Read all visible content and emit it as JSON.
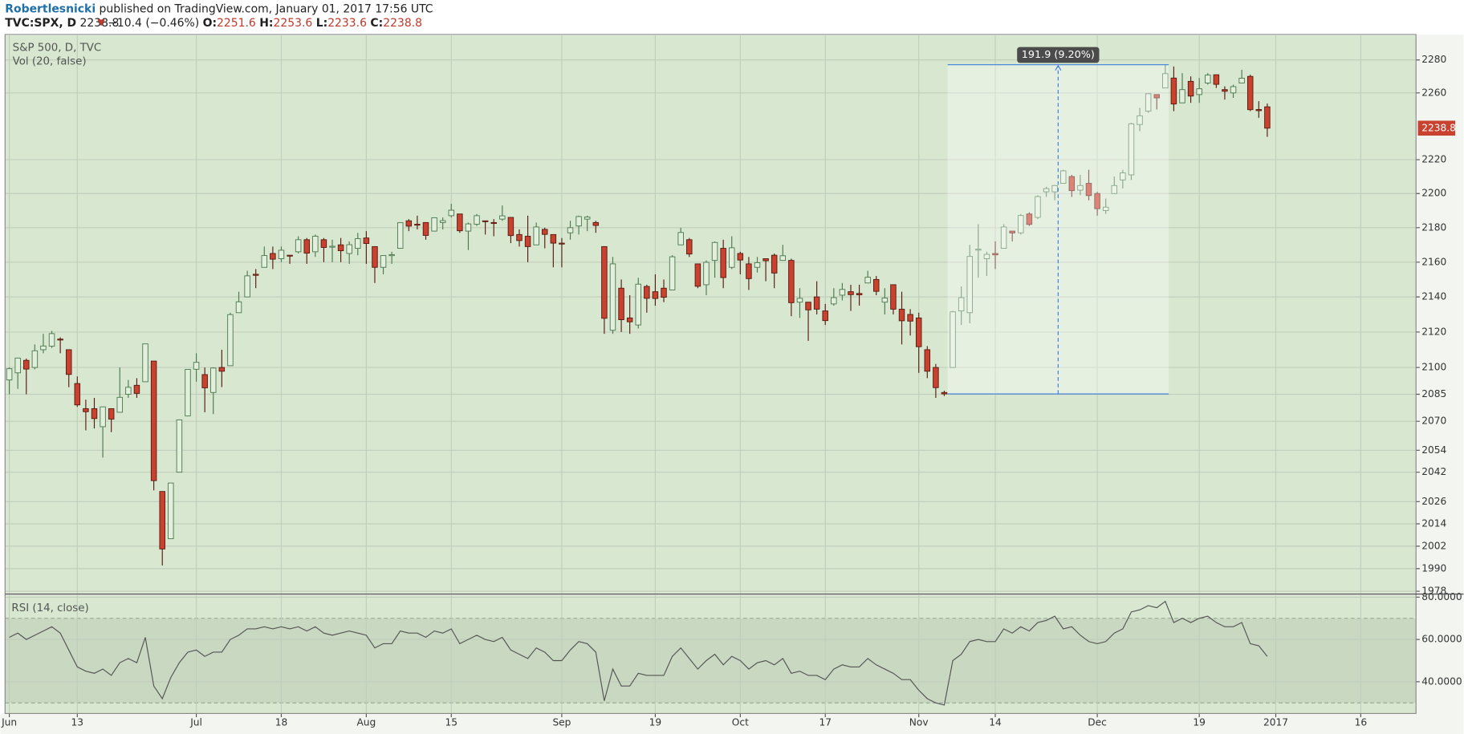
{
  "header": {
    "author": "Robertlesnicki",
    "published": "published on TradingView.com, January 01, 2017 17:56 UTC",
    "symbol": "TVC:SPX, D",
    "last": "2238.8",
    "change": "−10.4 (−0.46%)",
    "open_label": "O:",
    "open": "2251.6",
    "high_label": "H:",
    "high": "2253.6",
    "low_label": "L:",
    "low": "2233.6",
    "close_label": "C:",
    "close": "2238.8"
  },
  "chart_data": [
    {
      "type": "candlestick",
      "title": "S&P 500, D, TVC",
      "subtitle": "Vol (20, false)",
      "log_scale": true,
      "grid": true,
      "up_color": "#e2efdc",
      "up_edge": "#4f7a50",
      "down_color": "#c9412f",
      "down_edge": "#5a1c12",
      "ylim": [
        1977,
        2295
      ],
      "yticks": [
        2280,
        2260,
        2220,
        2200,
        2180,
        2160,
        2140,
        2120,
        2100,
        2085,
        2070,
        2054,
        2042,
        2026,
        2014,
        2002,
        1990,
        1978
      ],
      "categories": [
        "Jun",
        null,
        null,
        null,
        null,
        null,
        null,
        null,
        "13",
        null,
        null,
        null,
        null,
        null,
        null,
        null,
        null,
        null,
        null,
        null,
        null,
        null,
        "Jul",
        null,
        null,
        null,
        null,
        null,
        null,
        null,
        null,
        null,
        "18",
        null,
        null,
        null,
        null,
        null,
        null,
        null,
        null,
        null,
        "Aug",
        null,
        null,
        null,
        null,
        null,
        null,
        null,
        null,
        null,
        "15",
        null,
        null,
        null,
        null,
        null,
        null,
        null,
        null,
        null,
        null,
        null,
        null,
        "Sep",
        null,
        null,
        null,
        null,
        null,
        null,
        null,
        null,
        null,
        null,
        "19",
        null,
        null,
        null,
        null,
        null,
        null,
        null,
        null,
        null,
        "Oct",
        null,
        null,
        null,
        null,
        null,
        null,
        null,
        null,
        null,
        "17",
        null,
        null,
        null,
        null,
        null,
        null,
        null,
        null,
        null,
        null,
        "Nov",
        null,
        null,
        null,
        null,
        null,
        null,
        null,
        null,
        "14",
        null,
        null,
        null,
        null,
        null,
        null,
        null,
        null,
        null,
        null,
        null,
        "Dec",
        null,
        null,
        null,
        null,
        null,
        null,
        null,
        null,
        null,
        null,
        null,
        "19",
        null,
        null,
        null,
        null,
        null,
        null,
        null,
        null,
        "2017",
        null,
        null,
        null,
        null,
        null,
        null,
        null,
        null,
        null,
        "16",
        null,
        null,
        null,
        null,
        null,
        null
      ],
      "open": [
        2093,
        2097,
        2104,
        2100,
        2110,
        2112,
        2116,
        2110,
        2091,
        2077,
        2077,
        2067,
        2077,
        2075,
        2085,
        2090,
        2092,
        2103.6,
        2031.5,
        2006,
        2042,
        2073,
        2099,
        2096,
        2086,
        2100,
        2101,
        2131,
        2140,
        2153,
        2157,
        2165,
        2162,
        2164,
        2166,
        2173,
        2166,
        2173,
        2169,
        2170,
        2165,
        2168,
        2174,
        2169,
        2157,
        2164,
        2168,
        2184,
        2182,
        2183,
        2178,
        2183,
        2187,
        2188,
        2178,
        2182,
        2184,
        2183,
        2185,
        2186,
        2176,
        2175,
        2170,
        2179,
        2176,
        2171,
        2177,
        2181,
        2185,
        2183,
        2169,
        2121,
        2145,
        2128,
        2124,
        2146,
        2143,
        2145,
        2144,
        2170,
        2173,
        2159,
        2147,
        2161,
        2168,
        2157,
        2165,
        2159,
        2157,
        2162,
        2164,
        2161,
        2161,
        2137,
        2137,
        2140,
        2132,
        2136,
        2141,
        2143,
        2142,
        2148,
        2150,
        2137,
        2147,
        2133,
        2130,
        2128,
        2110,
        2100,
        2086,
        2100,
        2132,
        2131,
        2167,
        2162,
        2165,
        2168,
        2178,
        2177,
        2188,
        2186,
        2201,
        2201,
        2206,
        2210,
        2202,
        2206,
        2200,
        2190,
        2200,
        2208,
        2211,
        2241,
        2249,
        2259,
        2263,
        2269,
        2254,
        2267,
        2259,
        2266,
        2271,
        2262,
        2260,
        2266,
        2270,
        2250,
        2251.6,
        null,
        null,
        null,
        null,
        null,
        null,
        null,
        null,
        null,
        null,
        null,
        null,
        null,
        null,
        null,
        null,
        null
      ],
      "high": [
        2100,
        2105.3,
        2105,
        2113,
        2119,
        2120.6,
        2117,
        2110,
        2095,
        2082,
        2083,
        2078,
        2077,
        2100,
        2093,
        2094,
        2113.3,
        2103.6,
        2031.5,
        2036.1,
        2071,
        2098.9,
        2108,
        2100,
        2100,
        2110,
        2131,
        2143,
        2155,
        2156,
        2169,
        2169,
        2169,
        2164,
        2175,
        2174,
        2176,
        2174,
        2173,
        2174,
        2172,
        2177,
        2178,
        2169,
        2164,
        2166,
        2183,
        2185,
        2187,
        2183,
        2186,
        2186,
        2194,
        2188,
        2183,
        2188,
        2184,
        2185,
        2193,
        2186,
        2179,
        2187,
        2183,
        2180,
        2176,
        2174,
        2184,
        2187,
        2187,
        2184,
        2169,
        2163,
        2150,
        2141,
        2151,
        2147,
        2153,
        2150,
        2164,
        2180,
        2174,
        2159,
        2161,
        2172,
        2173,
        2175,
        2166,
        2163,
        2163,
        2162,
        2165,
        2170,
        2162,
        2145,
        2137,
        2149,
        2136,
        2145,
        2148,
        2147,
        2147,
        2155,
        2152,
        2145,
        2147,
        2143,
        2133,
        2131,
        2112,
        2102,
        2087,
        2132,
        2146,
        2170,
        2182,
        2166,
        2172,
        2182,
        2178,
        2188,
        2189,
        2199,
        2204,
        2205,
        2214,
        2211,
        2211,
        2214,
        2201,
        2197,
        2210,
        2214,
        2242,
        2251,
        2259.5,
        2259,
        2277.1,
        2276,
        2272,
        2270,
        2269,
        2272,
        2271,
        2264,
        2265,
        2274,
        2271,
        2255,
        2253.6,
        null,
        null,
        null,
        null,
        null,
        null,
        null,
        null,
        null,
        null,
        null,
        null,
        null,
        null,
        null,
        null,
        null
      ],
      "low": [
        2085,
        2088,
        2085,
        2099,
        2108,
        2111,
        2108,
        2089,
        2078,
        2065,
        2066,
        2050,
        2064,
        2075,
        2083,
        2083,
        2092,
        2032.1,
        1991.7,
        2006,
        2042,
        2073,
        2092,
        2075,
        2074,
        2089,
        2101,
        2131,
        2140,
        2145,
        2157,
        2156,
        2160,
        2159,
        2165,
        2159,
        2163,
        2160,
        2160,
        2160,
        2159,
        2164,
        2159,
        2148,
        2153,
        2159,
        2168,
        2178,
        2179,
        2173,
        2178,
        2179,
        2186,
        2177,
        2167,
        2181,
        2176,
        2175,
        2184,
        2171,
        2169,
        2160,
        2170,
        2168,
        2157,
        2157,
        2173,
        2176,
        2178,
        2177,
        2119,
        2119,
        2120,
        2119,
        2122,
        2131,
        2135,
        2137,
        2144,
        2170,
        2163,
        2145,
        2141,
        2151,
        2145,
        2156,
        2153,
        2144,
        2154,
        2149,
        2145,
        2161,
        2129,
        2128,
        2115,
        2130,
        2124,
        2135,
        2138,
        2132,
        2135,
        2148,
        2141,
        2130,
        2130,
        2113,
        2118,
        2097,
        2094,
        2083,
        2084,
        2100,
        2124,
        2125,
        2151,
        2152,
        2156,
        2168,
        2172,
        2176,
        2181,
        2185,
        2198,
        2196,
        2206,
        2198,
        2199,
        2196,
        2187,
        2188,
        2200,
        2203,
        2208,
        2237,
        2248,
        2250,
        2263,
        2249,
        2254,
        2254,
        2254,
        2265,
        2263,
        2256,
        2257,
        2266,
        2249,
        2245,
        2233.6,
        null,
        null,
        null,
        null,
        null,
        null,
        null,
        null,
        null,
        null,
        null,
        null,
        null,
        null,
        null,
        null,
        null
      ],
      "close": [
        2099.3,
        2105.3,
        2099.1,
        2109.4,
        2112.1,
        2119.1,
        2115.5,
        2096.1,
        2079.1,
        2075.3,
        2071.5,
        2078.0,
        2071.2,
        2083.3,
        2088.9,
        2085.5,
        2113.3,
        2037.4,
        2000.5,
        2036.1,
        2070.8,
        2098.9,
        2102.9,
        2088.6,
        2099.7,
        2097.9,
        2129.9,
        2137.2,
        2152.1,
        2152.4,
        2163.8,
        2161.7,
        2166.9,
        2163.8,
        2173.0,
        2165.2,
        2175.0,
        2168.5,
        2169.2,
        2166.6,
        2170.1,
        2173.6,
        2170.8,
        2157.0,
        2163.8,
        2164.3,
        2182.9,
        2180.9,
        2181.7,
        2175.5,
        2185.8,
        2184.1,
        2190.2,
        2178.2,
        2182.2,
        2187.0,
        2183.9,
        2182.6,
        2186.9,
        2175.4,
        2172.5,
        2169.0,
        2180.4,
        2176.1,
        2171.0,
        2170.9,
        2180.0,
        2186.5,
        2186.2,
        2181.3,
        2127.8,
        2159.0,
        2127.0,
        2125.8,
        2147.3,
        2139.2,
        2139.1,
        2139.8,
        2163.1,
        2177.2,
        2164.7,
        2146.1,
        2159.9,
        2171.4,
        2151.1,
        2168.3,
        2161.2,
        2150.5,
        2159.7,
        2160.8,
        2153.7,
        2163.7,
        2136.7,
        2139.2,
        2132.6,
        2133.0,
        2126.5,
        2139.6,
        2144.3,
        2141.3,
        2141.2,
        2151.3,
        2143.2,
        2139.4,
        2133.0,
        2126.4,
        2126.2,
        2111.7,
        2097.9,
        2088.7,
        2085.2,
        2131.5,
        2139.6,
        2163.3,
        2167.5,
        2164.5,
        2164.2,
        2180.4,
        2176.9,
        2187.1,
        2181.9,
        2198.2,
        2202.9,
        2204.7,
        2213.4,
        2201.7,
        2204.7,
        2198.8,
        2191.1,
        2192.0,
        2204.7,
        2212.2,
        2241.4,
        2246.2,
        2259.5,
        2257.0,
        2271.7,
        2253.3,
        2262.0,
        2258.1,
        2262.5,
        2270.8,
        2265.2,
        2261.0,
        2263.8,
        2268.9,
        2249.9,
        2249.3,
        2238.8,
        null,
        null,
        null,
        null,
        null,
        null,
        null,
        null,
        null,
        null,
        null,
        null,
        null,
        null,
        null,
        null,
        null
      ],
      "measure": {
        "label": "191.9 (9.20%)",
        "range": [
          2085.2,
          2277.1
        ],
        "color": "#3d7ddb"
      }
    },
    {
      "type": "line",
      "title": "RSI (14, close)",
      "color": "#555555",
      "grid": true,
      "ylim": [
        25,
        81
      ],
      "yticks": [
        {
          "value": 80,
          "label": "80.0000"
        },
        {
          "value": 60,
          "label": "60.0000"
        },
        {
          "value": 40,
          "label": "40.0000"
        }
      ],
      "band": [
        30,
        70
      ],
      "band_color": "#c9d8c1",
      "values": [
        61,
        63,
        60,
        62,
        64,
        66,
        63,
        55,
        47,
        45,
        44,
        46,
        43,
        49,
        51,
        49,
        61,
        38,
        32,
        42,
        49,
        54,
        55,
        52,
        54,
        54,
        60,
        62,
        65,
        65,
        66,
        65,
        66,
        65,
        66,
        64,
        66,
        63,
        62,
        63,
        64,
        63,
        62,
        56,
        58,
        58,
        64,
        63,
        63,
        61,
        64,
        63,
        65,
        58,
        60,
        62,
        60,
        59,
        61,
        55,
        53,
        51,
        56,
        54,
        50,
        50,
        55,
        59,
        58,
        54,
        31,
        46,
        38,
        38,
        44,
        43,
        43,
        43,
        52,
        56,
        51,
        46,
        50,
        53,
        48,
        52,
        50,
        46,
        49,
        50,
        48,
        51,
        44,
        45,
        43,
        43,
        41,
        46,
        48,
        47,
        47,
        51,
        48,
        46,
        44,
        41,
        41,
        36,
        32,
        30,
        29,
        50,
        53,
        59,
        60,
        59,
        59,
        65,
        63,
        66,
        64,
        68,
        69,
        71,
        65,
        66,
        62,
        59,
        58,
        59,
        63,
        65,
        73,
        74,
        76,
        75,
        78,
        68,
        70,
        68,
        70,
        71,
        68,
        66,
        66,
        68,
        58,
        57,
        52,
        null,
        null,
        null,
        null,
        null,
        null,
        null,
        null,
        null,
        null,
        null,
        null,
        null,
        null,
        null,
        null,
        null
      ]
    }
  ]
}
